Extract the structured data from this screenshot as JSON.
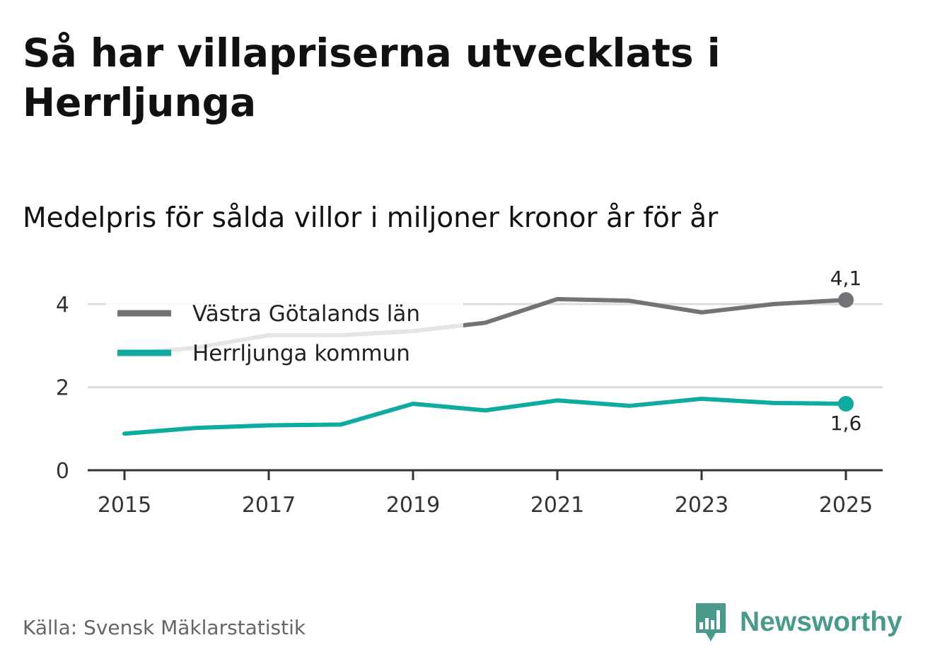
{
  "title": "Så har villapriserna utvecklats i Herrljunga",
  "subtitle": "Medelpris för sålda villor i miljoner kronor år för år",
  "source": "Källa: Svensk Mäklarstatistik",
  "brand": "Newsworthy",
  "colors": {
    "series_region": "#737277",
    "series_municipality": "#0faaa0",
    "gridline": "#dddddd",
    "axis": "#333333",
    "brand": "#4a9a8c"
  },
  "chart_data": {
    "type": "line",
    "title": "Så har villapriserna utvecklats i Herrljunga",
    "subtitle": "Medelpris för sålda villor i miljoner kronor år för år",
    "xlabel": "",
    "ylabel": "",
    "x": [
      2015,
      2016,
      2017,
      2018,
      2019,
      2020,
      2021,
      2022,
      2023,
      2024,
      2025
    ],
    "xticks": [
      "2015",
      "2017",
      "2019",
      "2021",
      "2023",
      "2025"
    ],
    "ylim": [
      0,
      4.6
    ],
    "yticks": [
      "0",
      "2",
      "4"
    ],
    "grid": true,
    "legend_position": "top-left",
    "series": [
      {
        "name": "Västra Götalands län",
        "color": "#737277",
        "values": [
          2.8,
          2.95,
          3.25,
          3.25,
          3.35,
          3.55,
          4.12,
          4.08,
          3.8,
          4.0,
          4.1
        ],
        "end_label": "4,1"
      },
      {
        "name": "Herrljunga kommun",
        "color": "#0faaa0",
        "values": [
          0.88,
          1.02,
          1.08,
          1.1,
          1.6,
          1.44,
          1.68,
          1.55,
          1.72,
          1.62,
          1.6
        ],
        "end_label": "1,6"
      }
    ]
  }
}
